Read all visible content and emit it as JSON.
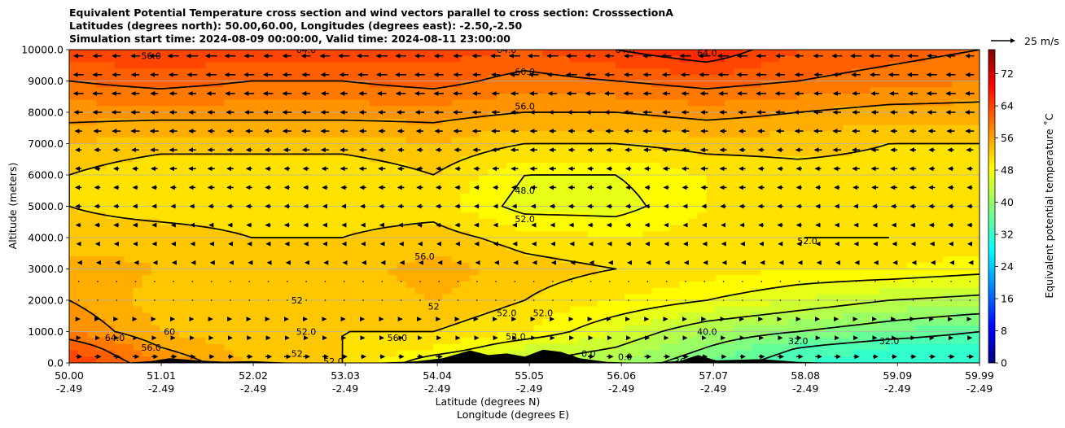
{
  "titles": [
    "Equivalent Potential Temperature cross section and wind vectors parallel to cross section: CrosssectionA",
    "Latitudes (degrees north): 50.00,60.00, Longitudes (degrees east): -2.50,-2.50",
    "Simulation start time: 2024-08-09 00:00:00, Valid time: 2024-08-11 23:00:00"
  ],
  "chart_data": {
    "type": "heatmap",
    "subtype": "filled-contour cross section with wind vectors",
    "ylabel": "Altitude (meters)",
    "xlabel_line1": "Latitude (degrees N)",
    "xlabel_line2": "Longitude (degrees E)",
    "ylim": [
      0,
      10000
    ],
    "y_ticks": [
      "0.0",
      "1000.0",
      "2000.0",
      "3000.0",
      "4000.0",
      "5000.0",
      "6000.0",
      "7000.0",
      "8000.0",
      "9000.0",
      "10000.0"
    ],
    "x_ticks": [
      {
        "lat": "50.00",
        "lon": "-2.49"
      },
      {
        "lat": "51.01",
        "lon": "-2.49"
      },
      {
        "lat": "52.02",
        "lon": "-2.49"
      },
      {
        "lat": "53.03",
        "lon": "-2.49"
      },
      {
        "lat": "54.04",
        "lon": "-2.49"
      },
      {
        "lat": "55.05",
        "lon": "-2.49"
      },
      {
        "lat": "56.06",
        "lon": "-2.49"
      },
      {
        "lat": "57.07",
        "lon": "-2.49"
      },
      {
        "lat": "58.08",
        "lon": "-2.49"
      },
      {
        "lat": "59.09",
        "lon": "-2.49"
      },
      {
        "lat": "59.99",
        "lon": "-2.49"
      }
    ],
    "grid": "horizontal",
    "colorbar": {
      "label": "Equivalent potential temperature ˚C",
      "min": 0,
      "max": 78,
      "ticks": [
        "0",
        "8",
        "16",
        "24",
        "32",
        "40",
        "48",
        "56",
        "64",
        "72"
      ],
      "colormap": "jet"
    },
    "wind_key": {
      "label": "25 m/s",
      "speed": 25
    },
    "theta_e_profile": {
      "altitudes": [
        0,
        500,
        1000,
        2000,
        3000,
        4000,
        5000,
        6000,
        7000,
        8000,
        9000,
        10000
      ],
      "columns": [
        {
          "lat": 50.0,
          "values": [
            64,
            62,
            58,
            56,
            55,
            53,
            52,
            52,
            54,
            57,
            60,
            63
          ]
        },
        {
          "lat": 51.0,
          "values": [
            58,
            56,
            54,
            53,
            54,
            53,
            51,
            50,
            53,
            57,
            61,
            64
          ]
        },
        {
          "lat": 52.0,
          "values": [
            54,
            53,
            52,
            52,
            53,
            52,
            51,
            50,
            53,
            57,
            60,
            63
          ]
        },
        {
          "lat": 53.0,
          "values": [
            52,
            52,
            52,
            53,
            53,
            52,
            51,
            50,
            53,
            57,
            60,
            63
          ]
        },
        {
          "lat": 54.0,
          "values": [
            46,
            50,
            52,
            54,
            55,
            53,
            51,
            52,
            54,
            57,
            61,
            63
          ]
        },
        {
          "lat": 55.0,
          "values": [
            44,
            46,
            50,
            52,
            53,
            51,
            47,
            48,
            52,
            56,
            59,
            62
          ]
        },
        {
          "lat": 56.0,
          "values": [
            42,
            44,
            46,
            50,
            52,
            50,
            47,
            48,
            52,
            56,
            60,
            64
          ]
        },
        {
          "lat": 57.0,
          "values": [
            38,
            40,
            42,
            48,
            51,
            51,
            50,
            50,
            53,
            57,
            61,
            66
          ]
        },
        {
          "lat": 58.0,
          "values": [
            34,
            36,
            40,
            46,
            50,
            52,
            51,
            51,
            53,
            56,
            60,
            62
          ]
        },
        {
          "lat": 59.0,
          "values": [
            32,
            34,
            38,
            44,
            50,
            52,
            51,
            51,
            52,
            55,
            59,
            61
          ]
        },
        {
          "lat": 60.0,
          "values": [
            32,
            33,
            36,
            43,
            49,
            51,
            50,
            50,
            52,
            55,
            58,
            60
          ]
        }
      ]
    },
    "wind_u_profile": {
      "altitudes": [
        100,
        1000,
        2000,
        3000,
        4000,
        5000,
        6000,
        7000,
        8000,
        9000,
        9800
      ],
      "values": [
        6,
        2,
        1,
        -1,
        -4,
        -5,
        -6,
        -7,
        -8,
        -9,
        -10
      ]
    },
    "contour_levels": [
      32,
      36,
      40,
      44,
      48,
      52,
      56,
      60,
      64
    ],
    "contour_labels": [
      {
        "text": "64.0",
        "lat": 50.5,
        "alt": 800
      },
      {
        "text": "56.0",
        "lat": 50.9,
        "alt": 500
      },
      {
        "text": "60",
        "lat": 51.1,
        "alt": 1000
      },
      {
        "text": "52.0",
        "lat": 52.6,
        "alt": 1000
      },
      {
        "text": "52",
        "lat": 52.5,
        "alt": 2000
      },
      {
        "text": "52",
        "lat": 52.5,
        "alt": 300
      },
      {
        "text": "52.0",
        "lat": 52.9,
        "alt": 50
      },
      {
        "text": "56.0",
        "lat": 53.9,
        "alt": 3400
      },
      {
        "text": "52",
        "lat": 54.0,
        "alt": 1800
      },
      {
        "text": "56.0",
        "lat": 53.6,
        "alt": 800
      },
      {
        "text": "48.0",
        "lat": 55.0,
        "alt": 5500
      },
      {
        "text": "52.0",
        "lat": 55.0,
        "alt": 4600
      },
      {
        "text": "52.0",
        "lat": 54.8,
        "alt": 1600
      },
      {
        "text": "52.0",
        "lat": 54.9,
        "alt": 850
      },
      {
        "text": "52.0",
        "lat": 55.2,
        "alt": 1600
      },
      {
        "text": "56.0",
        "lat": 50.9,
        "alt": 9800
      },
      {
        "text": "64.0",
        "lat": 52.6,
        "alt": 10000
      },
      {
        "text": "64.0",
        "lat": 54.8,
        "alt": 10000
      },
      {
        "text": "60.0",
        "lat": 55.0,
        "alt": 9300
      },
      {
        "text": "56.0",
        "lat": 55.0,
        "alt": 8200
      },
      {
        "text": "64.0",
        "lat": 56.1,
        "alt": 10000
      },
      {
        "text": "64.0",
        "lat": 57.0,
        "alt": 9900
      },
      {
        "text": "52.0",
        "lat": 58.1,
        "alt": 3900
      },
      {
        "text": "40.0",
        "lat": 57.0,
        "alt": 1000
      },
      {
        "text": "36",
        "lat": 56.7,
        "alt": 50
      },
      {
        "text": "32.0",
        "lat": 58.0,
        "alt": 700
      },
      {
        "text": "32.0",
        "lat": 59.0,
        "alt": 700
      },
      {
        "text": "0.0",
        "lat": 55.7,
        "alt": 300
      },
      {
        "text": "0.0",
        "lat": 56.1,
        "alt": 200
      }
    ]
  }
}
